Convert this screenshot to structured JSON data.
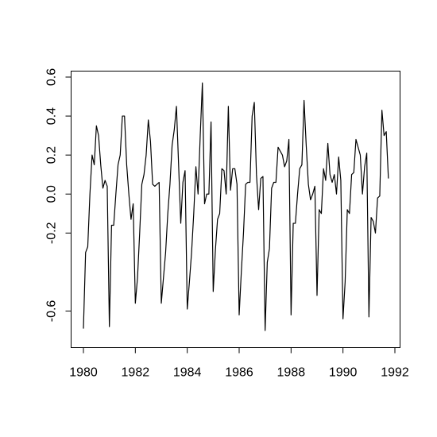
{
  "chart_data": {
    "type": "line",
    "title": "",
    "xlabel": "",
    "ylabel": "",
    "xlim": [
      1980,
      1992
    ],
    "ylim": [
      -0.7,
      0.6
    ],
    "x_ticks": [
      1980,
      1982,
      1984,
      1986,
      1988,
      1990,
      1992
    ],
    "x_tick_labels": [
      "1980",
      "1982",
      "1984",
      "1986",
      "1988",
      "1990",
      "1992"
    ],
    "y_ticks": [
      -0.6,
      -0.2,
      0.0,
      0.2,
      0.4,
      0.6
    ],
    "y_tick_labels": [
      "-0.6",
      "-0.2",
      "0.0",
      "0.2",
      "0.4",
      "0.6"
    ],
    "grid": false,
    "frequency": "monthly",
    "start": 1980.0,
    "series": [
      {
        "color": "#000000",
        "values": [
          -0.69,
          -0.3,
          -0.27,
          0.0,
          0.2,
          0.15,
          0.35,
          0.3,
          0.15,
          0.03,
          0.07,
          0.04,
          -0.68,
          -0.16,
          -0.16,
          0.0,
          0.15,
          0.2,
          0.4,
          0.4,
          0.15,
          0.0,
          -0.13,
          -0.05,
          -0.56,
          -0.43,
          -0.2,
          0.05,
          0.1,
          0.2,
          0.38,
          0.27,
          0.05,
          0.04,
          0.05,
          0.06,
          -0.56,
          -0.43,
          -0.3,
          -0.1,
          0.05,
          0.25,
          0.33,
          0.45,
          0.15,
          -0.15,
          0.06,
          0.12,
          -0.59,
          -0.45,
          -0.3,
          -0.1,
          0.14,
          0.0,
          0.3,
          0.57,
          -0.05,
          0.0,
          0.0,
          0.37,
          -0.5,
          -0.29,
          -0.13,
          -0.1,
          0.13,
          0.12,
          0.0,
          0.45,
          0.02,
          0.13,
          0.13,
          0.05,
          -0.62,
          -0.4,
          -0.2,
          0.05,
          0.06,
          0.06,
          0.4,
          0.47,
          0.1,
          -0.08,
          0.08,
          0.09,
          -0.7,
          -0.35,
          -0.28,
          0.03,
          0.06,
          0.06,
          0.24,
          0.22,
          0.2,
          0.14,
          0.17,
          0.28,
          -0.62,
          -0.15,
          -0.15,
          0.0,
          0.13,
          0.15,
          0.48,
          0.25,
          0.05,
          -0.03,
          0.0,
          0.04,
          -0.52,
          -0.08,
          -0.1,
          0.13,
          0.07,
          0.26,
          0.1,
          0.06,
          0.1,
          0.0,
          0.19,
          0.07,
          -0.64,
          -0.45,
          -0.08,
          -0.1,
          0.1,
          0.11,
          0.28,
          0.24,
          0.2,
          0.0,
          0.14,
          0.21,
          -0.63,
          -0.12,
          -0.14,
          -0.2,
          -0.02,
          -0.01,
          0.43,
          0.3,
          0.32,
          0.08
        ]
      }
    ]
  }
}
